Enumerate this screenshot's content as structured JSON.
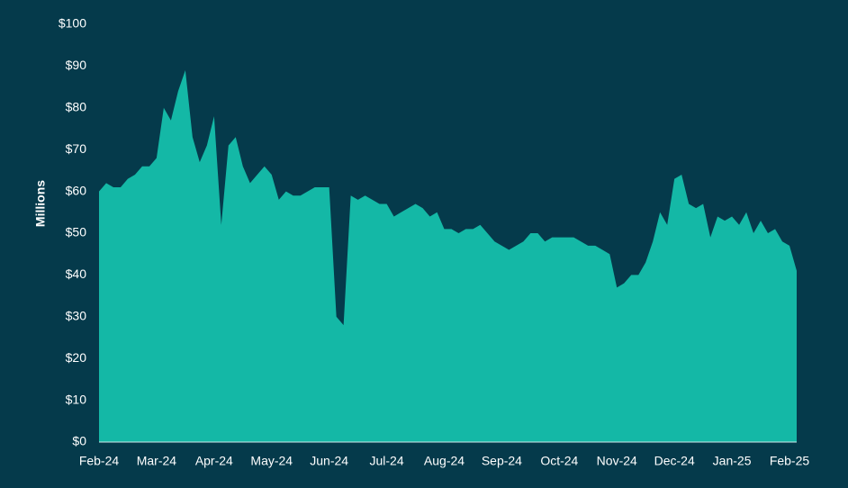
{
  "chart_data": {
    "type": "area",
    "y_label": "Millions",
    "categories": [
      "Feb-24",
      null,
      null,
      null,
      null,
      null,
      null,
      null,
      "Mar-24",
      null,
      null,
      null,
      null,
      null,
      null,
      null,
      "Apr-24",
      null,
      null,
      null,
      null,
      null,
      null,
      null,
      "May-24",
      null,
      null,
      null,
      null,
      null,
      null,
      null,
      "Jun-24",
      null,
      null,
      null,
      null,
      null,
      null,
      null,
      "Jul-24",
      null,
      null,
      null,
      null,
      null,
      null,
      null,
      "Aug-24",
      null,
      null,
      null,
      null,
      null,
      null,
      null,
      "Sep-24",
      null,
      null,
      null,
      null,
      null,
      null,
      null,
      "Oct-24",
      null,
      null,
      null,
      null,
      null,
      null,
      null,
      "Nov-24",
      null,
      null,
      null,
      null,
      null,
      null,
      null,
      "Dec-24",
      null,
      null,
      null,
      null,
      null,
      null,
      null,
      "Jan-25",
      null,
      null,
      null,
      null,
      null,
      null,
      null,
      "Feb-25",
      null
    ],
    "series": [
      {
        "color": "#14b8a6",
        "values": [
          60,
          62,
          61,
          61,
          63,
          64,
          66,
          66,
          68,
          80,
          77,
          84,
          89,
          73,
          67,
          71,
          78,
          52,
          71,
          73,
          66,
          62,
          64,
          66,
          64,
          58,
          60,
          59,
          59,
          60,
          61,
          61,
          61,
          30,
          28,
          59,
          58,
          59,
          58,
          57,
          57,
          54,
          55,
          56,
          57,
          56,
          54,
          55,
          51,
          51,
          50,
          51,
          51,
          52,
          50,
          48,
          47,
          46,
          47,
          48,
          50,
          50,
          48,
          49,
          49,
          49,
          49,
          48,
          47,
          47,
          46,
          45,
          37,
          38,
          40,
          40,
          43,
          48,
          55,
          52,
          63,
          64,
          57,
          56,
          57,
          49,
          54,
          53,
          54,
          52,
          55,
          50,
          53,
          50,
          51,
          48,
          47,
          41
        ]
      }
    ],
    "ylim": [
      0,
      100
    ],
    "yticks": [
      {
        "value": 0,
        "label": "$0"
      },
      {
        "value": 10,
        "label": "$10"
      },
      {
        "value": 20,
        "label": "$20"
      },
      {
        "value": 30,
        "label": "$30"
      },
      {
        "value": 40,
        "label": "$40"
      },
      {
        "value": 50,
        "label": "$50"
      },
      {
        "value": 60,
        "label": "$60"
      },
      {
        "value": 70,
        "label": "$70"
      },
      {
        "value": 80,
        "label": "$80"
      },
      {
        "value": 90,
        "label": "$90"
      },
      {
        "value": 100,
        "label": "$100"
      }
    ]
  }
}
